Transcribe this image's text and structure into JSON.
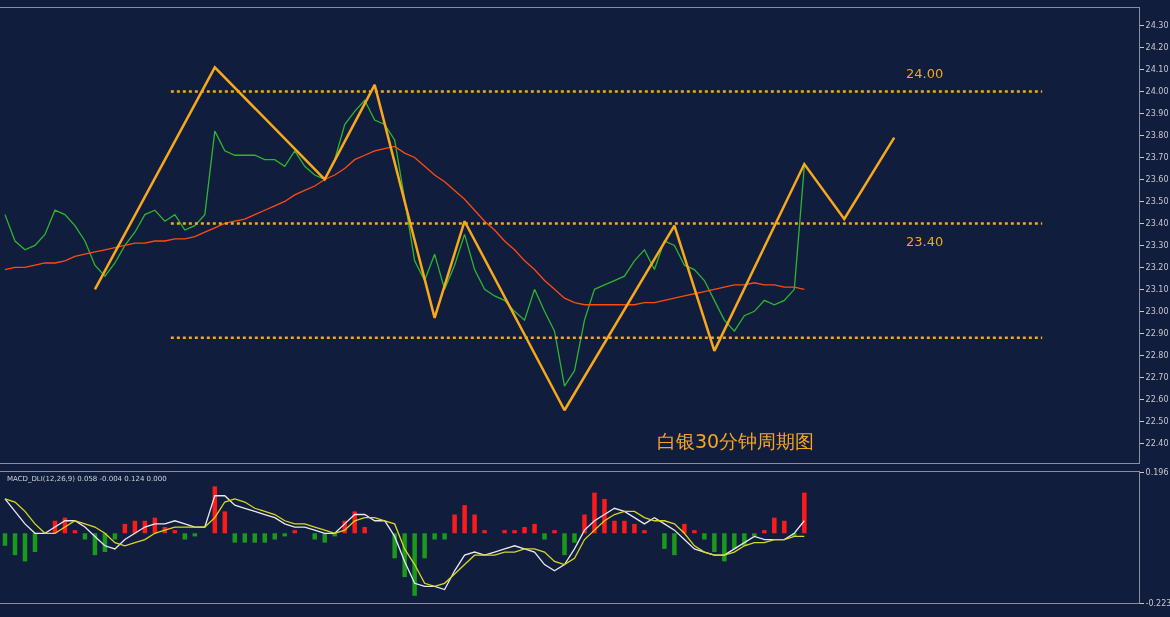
{
  "chart_data": [
    {
      "type": "line",
      "categories": [
        null,
        null,
        null,
        null,
        null,
        null,
        null,
        null,
        null,
        null,
        null,
        null,
        null,
        null,
        null,
        null,
        null,
        null,
        null,
        null,
        null,
        null,
        null,
        null,
        null,
        null,
        null,
        null,
        null,
        null,
        null,
        null,
        null,
        null,
        null,
        null,
        null,
        null,
        null,
        null,
        null,
        null,
        null,
        null,
        null,
        null,
        null,
        null,
        null,
        null,
        null,
        null,
        null,
        null,
        null,
        null,
        null,
        null,
        null,
        null,
        null,
        null,
        null,
        null,
        null,
        null,
        null,
        null,
        null,
        null,
        null,
        null,
        null,
        null,
        null,
        null,
        null,
        null,
        null,
        null,
        null,
        null,
        null,
        null,
        null,
        null,
        null,
        null,
        null,
        null,
        null,
        null,
        null,
        null,
        null,
        null,
        null,
        null,
        null,
        null,
        null,
        null,
        null,
        null,
        null,
        null,
        null,
        null,
        null,
        null,
        null,
        null,
        null,
        null
      ],
      "series": [
        {
          "color": "#2fb52f",
          "values": [
            23.44,
            23.32,
            23.28,
            23.3,
            23.35,
            23.46,
            23.44,
            23.39,
            23.32,
            23.21,
            23.16,
            23.22,
            23.3,
            23.36,
            23.44,
            23.46,
            23.41,
            23.44,
            23.37,
            23.39,
            23.44,
            23.82,
            23.73,
            23.71,
            23.71,
            23.71,
            23.69,
            23.69,
            23.66,
            23.73,
            23.66,
            23.62,
            23.6,
            23.69,
            23.85,
            23.91,
            23.96,
            23.87,
            23.85,
            23.78,
            23.51,
            23.23,
            23.14,
            23.26,
            23.1,
            23.21,
            23.35,
            23.19,
            23.1,
            23.07,
            23.05,
            23.0,
            22.96,
            23.1,
            23.0,
            22.91,
            22.66,
            22.73,
            22.96,
            23.1,
            23.12,
            23.14,
            23.16,
            23.23,
            23.28,
            23.19,
            23.32,
            23.3,
            23.21,
            23.19,
            23.14,
            23.05,
            22.96,
            22.91,
            22.98,
            23.0,
            23.05,
            23.03,
            23.05,
            23.1,
            23.66,
            null,
            null,
            null,
            null,
            null,
            null,
            null,
            null,
            null,
            null,
            null,
            null,
            null,
            null,
            null,
            null,
            null,
            null,
            null,
            null,
            null,
            null,
            null,
            null,
            null,
            null,
            null,
            null,
            null,
            null,
            null,
            null,
            null
          ]
        },
        {
          "color": "#ff4a10",
          "values": [
            23.19,
            23.2,
            23.2,
            23.21,
            23.22,
            23.22,
            23.23,
            23.25,
            23.26,
            23.27,
            23.28,
            23.29,
            23.3,
            23.31,
            23.31,
            23.32,
            23.32,
            23.33,
            23.33,
            23.34,
            23.36,
            23.38,
            23.4,
            23.41,
            23.42,
            23.44,
            23.46,
            23.48,
            23.5,
            23.53,
            23.55,
            23.57,
            23.6,
            23.62,
            23.65,
            23.69,
            23.71,
            23.73,
            23.74,
            23.75,
            23.72,
            23.7,
            23.66,
            23.62,
            23.59,
            23.55,
            23.51,
            23.46,
            23.41,
            23.37,
            23.32,
            23.28,
            23.23,
            23.19,
            23.14,
            23.1,
            23.06,
            23.04,
            23.03,
            23.03,
            23.03,
            23.03,
            23.03,
            23.03,
            23.04,
            23.04,
            23.05,
            23.06,
            23.07,
            23.08,
            23.09,
            23.1,
            23.11,
            23.12,
            23.12,
            23.13,
            23.12,
            23.12,
            23.11,
            23.11,
            23.1,
            null,
            null,
            null,
            null,
            null,
            null,
            null,
            null,
            null,
            null,
            null,
            null,
            null,
            null,
            null,
            null,
            null,
            null,
            null,
            null,
            null,
            null,
            null,
            null,
            null,
            null,
            null,
            null,
            null,
            null,
            null,
            null,
            null
          ]
        },
        {
          "color": "#f7a81b",
          "values": [
            null,
            null,
            null,
            null,
            null,
            null,
            null,
            null,
            null,
            23.1,
            null,
            null,
            null,
            null,
            null,
            null,
            null,
            null,
            null,
            null,
            null,
            24.11,
            null,
            null,
            null,
            null,
            null,
            null,
            null,
            null,
            null,
            null,
            23.6,
            null,
            null,
            null,
            null,
            24.03,
            null,
            null,
            null,
            null,
            null,
            22.97,
            null,
            null,
            23.41,
            null,
            null,
            null,
            null,
            null,
            null,
            null,
            null,
            null,
            22.55,
            null,
            null,
            null,
            null,
            null,
            null,
            null,
            null,
            null,
            null,
            23.39,
            null,
            null,
            null,
            22.82,
            null,
            null,
            null,
            null,
            null,
            null,
            null,
            null,
            23.67,
            null,
            null,
            null,
            23.42,
            null,
            null,
            null,
            null,
            23.79,
            null,
            null,
            null,
            null,
            null,
            null,
            null,
            null,
            null,
            null,
            null,
            null,
            null,
            null,
            null,
            null,
            null,
            null,
            null,
            null,
            null,
            null,
            null,
            null
          ]
        }
      ],
      "ylim": [
        22.31,
        24.38
      ],
      "yticks": [
        {
          "value": 22.4,
          "label": "22.40"
        },
        {
          "value": 22.5,
          "label": "22.50"
        },
        {
          "value": 22.6,
          "label": "22.60"
        },
        {
          "value": 22.7,
          "label": "22.70"
        },
        {
          "value": 22.8,
          "label": "22.80"
        },
        {
          "value": 22.9,
          "label": "22.90"
        },
        {
          "value": 23.0,
          "label": "23.00"
        },
        {
          "value": 23.1,
          "label": "23.10"
        },
        {
          "value": 23.2,
          "label": "23.20"
        },
        {
          "value": 23.3,
          "label": "23.30"
        },
        {
          "value": 23.4,
          "label": "23.40"
        },
        {
          "value": 23.5,
          "label": "23.50"
        },
        {
          "value": 23.6,
          "label": "23.60"
        },
        {
          "value": 23.7,
          "label": "23.70"
        },
        {
          "value": 23.8,
          "label": "23.80"
        },
        {
          "value": 23.9,
          "label": "23.90"
        },
        {
          "value": 24.0,
          "label": "24.00"
        },
        {
          "value": 24.1,
          "label": "24.10"
        },
        {
          "value": 24.2,
          "label": "24.20"
        },
        {
          "value": 24.3,
          "label": "24.30"
        }
      ],
      "ref_lines": [
        {
          "axis": "y",
          "value": 24.0,
          "label": "24.00",
          "color": "#f5a623",
          "line_style": "dotted"
        },
        {
          "axis": "y",
          "value": 23.4,
          "label": "23.40",
          "color": "#f5a623",
          "line_style": "dotted"
        },
        {
          "axis": "y",
          "value": 22.88,
          "color": "#f5a623",
          "line_style": "dotted"
        }
      ],
      "annotations": [
        "白银30分钟周期图"
      ],
      "tick_labels": "y",
      "line_style": "solid"
    },
    {
      "type": "bar",
      "categories": [
        null,
        null,
        null,
        null,
        null,
        null,
        null,
        null,
        null,
        null,
        null,
        null,
        null,
        null,
        null,
        null,
        null,
        null,
        null,
        null,
        null,
        null,
        null,
        null,
        null,
        null,
        null,
        null,
        null,
        null,
        null,
        null,
        null,
        null,
        null,
        null,
        null,
        null,
        null,
        null,
        null,
        null,
        null,
        null,
        null,
        null,
        null,
        null,
        null,
        null,
        null,
        null,
        null,
        null,
        null,
        null,
        null,
        null,
        null,
        null,
        null,
        null,
        null,
        null,
        null,
        null,
        null,
        null,
        null,
        null,
        null,
        null,
        null,
        null,
        null,
        null,
        null,
        null,
        null,
        null,
        null,
        null,
        null,
        null,
        null,
        null,
        null,
        null,
        null,
        null,
        null,
        null,
        null,
        null,
        null,
        null,
        null,
        null,
        null,
        null,
        null,
        null,
        null,
        null,
        null,
        null,
        null,
        null,
        null,
        null,
        null,
        null,
        null,
        null
      ],
      "series": [
        {
          "values": [
            -0.04,
            -0.07,
            -0.09,
            -0.06,
            0.0,
            0.04,
            0.05,
            0.01,
            -0.02,
            -0.07,
            -0.06,
            -0.02,
            0.03,
            0.04,
            0.04,
            0.05,
            0.02,
            0.01,
            -0.02,
            -0.01,
            0.0,
            0.15,
            0.07,
            -0.03,
            -0.03,
            -0.03,
            -0.03,
            -0.02,
            -0.01,
            0.01,
            0.0,
            -0.02,
            -0.03,
            -0.01,
            0.04,
            0.07,
            0.02,
            0.0,
            0.0,
            -0.08,
            -0.14,
            -0.2,
            -0.08,
            -0.02,
            -0.02,
            0.06,
            0.09,
            0.06,
            0.01,
            0.0,
            0.01,
            0.01,
            0.02,
            0.03,
            -0.02,
            0.01,
            -0.07,
            -0.03,
            0.06,
            0.13,
            0.11,
            0.04,
            0.04,
            0.03,
            0.01,
            0.0,
            -0.05,
            -0.07,
            0.03,
            0.01,
            -0.02,
            -0.06,
            -0.09,
            -0.05,
            -0.04,
            -0.01,
            0.01,
            0.05,
            0.04,
            -0.01,
            0.13,
            null,
            null,
            null,
            null,
            null,
            null,
            null,
            null,
            null,
            null,
            null,
            null,
            null,
            null,
            null,
            null,
            null,
            null,
            null,
            null,
            null,
            null,
            null,
            null,
            null,
            null,
            null,
            null,
            null,
            null,
            null,
            null,
            null
          ],
          "colors": [
            "#1a9a1a",
            "#1a9a1a",
            "#1a9a1a",
            "#1a9a1a",
            "#ff1a1a",
            "#ff1a1a",
            "#ff1a1a",
            "#ff1a1a",
            "#1a9a1a",
            "#1a9a1a",
            "#1a9a1a",
            "#1a9a1a",
            "#ff1a1a",
            "#ff1a1a",
            "#ff1a1a",
            "#ff1a1a",
            "#ff1a1a",
            "#ff1a1a",
            "#1a9a1a",
            "#1a9a1a",
            "#ff1a1a",
            "#ff1a1a",
            "#ff1a1a",
            "#1a9a1a",
            "#1a9a1a",
            "#1a9a1a",
            "#1a9a1a",
            "#1a9a1a",
            "#1a9a1a",
            "#ff1a1a",
            "#ff1a1a",
            "#1a9a1a",
            "#1a9a1a",
            "#1a9a1a",
            "#ff1a1a",
            "#ff1a1a",
            "#ff1a1a",
            "#ff1a1a",
            "#ff1a1a",
            "#1a9a1a",
            "#1a9a1a",
            "#1a9a1a",
            "#1a9a1a",
            "#1a9a1a",
            "#1a9a1a",
            "#ff1a1a",
            "#ff1a1a",
            "#ff1a1a",
            "#ff1a1a",
            "#ff1a1a",
            "#ff1a1a",
            "#ff1a1a",
            "#ff1a1a",
            "#ff1a1a",
            "#1a9a1a",
            "#ff1a1a",
            "#1a9a1a",
            "#1a9a1a",
            "#ff1a1a",
            "#ff1a1a",
            "#ff1a1a",
            "#ff1a1a",
            "#ff1a1a",
            "#ff1a1a",
            "#ff1a1a",
            "#ff1a1a",
            "#1a9a1a",
            "#1a9a1a",
            "#ff1a1a",
            "#ff1a1a",
            "#1a9a1a",
            "#1a9a1a",
            "#1a9a1a",
            "#1a9a1a",
            "#1a9a1a",
            "#1a9a1a",
            "#ff1a1a",
            "#ff1a1a",
            "#ff1a1a",
            "#1a9a1a",
            "#ff1a1a",
            "#1a9a1a",
            "#1a9a1a",
            "#1a9a1a",
            "#1a9a1a",
            "#1a9a1a",
            "#1a9a1a",
            "#1a9a1a",
            "#1a9a1a",
            "#1a9a1a",
            "#1a9a1a",
            "#1a9a1a",
            "#1a9a1a",
            "#1a9a1a",
            "#1a9a1a",
            "#1a9a1a",
            "#1a9a1a",
            "#1a9a1a",
            "#1a9a1a",
            "#1a9a1a",
            "#1a9a1a",
            "#1a9a1a",
            "#1a9a1a",
            "#1a9a1a",
            "#1a9a1a",
            "#1a9a1a",
            "#1a9a1a",
            "#1a9a1a",
            "#1a9a1a",
            "#1a9a1a",
            "#1a9a1a",
            "#1a9a1a",
            "#1a9a1a",
            "#1a9a1a"
          ]
        },
        {
          "type": "line",
          "color": "#e8e8f0",
          "values": [
            0.11,
            0.07,
            0.03,
            0.0,
            0.0,
            0.02,
            0.04,
            0.04,
            0.02,
            -0.01,
            -0.04,
            -0.05,
            -0.02,
            0.0,
            0.02,
            0.03,
            0.03,
            0.04,
            0.03,
            0.02,
            0.02,
            0.12,
            0.12,
            0.09,
            0.08,
            0.07,
            0.06,
            0.05,
            0.03,
            0.02,
            0.02,
            0.01,
            0.0,
            0.0,
            0.03,
            0.06,
            0.06,
            0.04,
            0.04,
            -0.01,
            -0.09,
            -0.16,
            -0.17,
            -0.17,
            -0.18,
            -0.12,
            -0.07,
            -0.06,
            -0.07,
            -0.06,
            -0.05,
            -0.04,
            -0.05,
            -0.06,
            -0.1,
            -0.12,
            -0.1,
            -0.05,
            0.01,
            0.04,
            0.06,
            0.08,
            0.07,
            0.05,
            0.03,
            0.05,
            0.03,
            0.01,
            -0.02,
            -0.05,
            -0.06,
            -0.07,
            -0.07,
            -0.05,
            -0.03,
            -0.01,
            -0.02,
            -0.02,
            -0.02,
            0.0,
            0.04,
            null,
            null,
            null,
            null,
            null,
            null,
            null,
            null,
            null,
            null,
            null,
            null,
            null,
            null,
            null,
            null,
            null,
            null,
            null,
            null,
            null,
            null,
            null,
            null,
            null,
            null,
            null,
            null,
            null,
            null,
            null,
            null,
            null
          ]
        },
        {
          "type": "line",
          "color": "#d8d820",
          "values": [
            0.11,
            0.1,
            0.07,
            0.03,
            0.0,
            0.0,
            0.02,
            0.04,
            0.03,
            0.02,
            0.0,
            -0.03,
            -0.04,
            -0.03,
            -0.02,
            0.0,
            0.01,
            0.02,
            0.02,
            0.02,
            0.02,
            0.05,
            0.1,
            0.11,
            0.1,
            0.08,
            0.07,
            0.06,
            0.04,
            0.03,
            0.03,
            0.02,
            0.01,
            0.0,
            0.01,
            0.04,
            0.05,
            0.05,
            0.04,
            0.03,
            -0.05,
            -0.1,
            -0.16,
            -0.17,
            -0.16,
            -0.13,
            -0.1,
            -0.07,
            -0.07,
            -0.07,
            -0.06,
            -0.06,
            -0.05,
            -0.05,
            -0.06,
            -0.09,
            -0.1,
            -0.08,
            -0.02,
            0.01,
            0.04,
            0.06,
            0.07,
            0.07,
            0.05,
            0.04,
            0.04,
            0.03,
            0.0,
            -0.04,
            -0.06,
            -0.07,
            -0.07,
            -0.06,
            -0.04,
            -0.03,
            -0.03,
            -0.02,
            -0.02,
            -0.01,
            -0.01,
            null,
            null,
            null,
            null,
            null,
            null,
            null,
            null,
            null,
            null,
            null,
            null,
            null,
            null,
            null,
            null,
            null,
            null,
            null,
            null,
            null,
            null,
            null,
            null,
            null,
            null,
            null,
            null,
            null,
            null,
            null,
            null,
            null
          ]
        }
      ],
      "ylim": [
        -0.223,
        0.196
      ],
      "yticks": [
        -0.223,
        0.196
      ],
      "annotations": [
        "MACD_DLI(12,26,9) 0.058 -0.004 0.124 0.000"
      ],
      "tick_labels": "y"
    }
  ]
}
